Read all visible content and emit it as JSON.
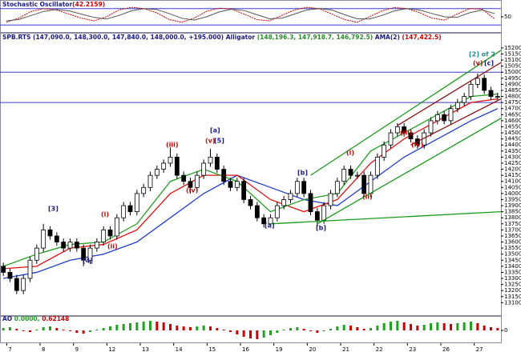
{
  "chart_data": [
    {
      "type": "line",
      "header": [
        {
          "text": "Stochastic Oscillator",
          "color": "#1a1a8a"
        },
        {
          "text": "(42.2159)",
          "color": "#cc0000"
        }
      ],
      "xlim": [
        -0.5,
        39.5
      ],
      "ylim": [
        0,
        100
      ],
      "yticks": [
        50
      ],
      "levels": [
        80,
        20
      ],
      "level_color": "#3b3bd6",
      "series": [
        {
          "color": "#cc0000",
          "values": [
            30,
            45,
            70,
            80,
            75,
            60,
            45,
            35,
            50,
            75,
            85,
            80,
            65,
            40,
            30,
            45,
            70,
            82,
            78,
            60,
            40,
            35,
            55,
            75,
            85,
            80,
            60,
            40,
            30,
            50,
            72,
            84,
            80,
            65,
            45,
            38,
            60,
            80,
            78,
            42
          ]
        },
        {
          "color": "#555555",
          "values": [
            35,
            40,
            55,
            70,
            77,
            72,
            60,
            48,
            42,
            55,
            72,
            80,
            77,
            62,
            45,
            38,
            50,
            68,
            78,
            73,
            58,
            43,
            45,
            60,
            75,
            80,
            75,
            58,
            43,
            42,
            55,
            72,
            80,
            75,
            62,
            50,
            48,
            65,
            75,
            62
          ]
        }
      ]
    },
    {
      "type": "candlestick",
      "header": [
        {
          "text": "SPB.RTS",
          "color": "#1a1a8a"
        },
        {
          "text": " (147,090.0, 148,300.0, 147,840.0, 148,000.0, +195.000)",
          "color": "#1a1a8a"
        },
        {
          "text": "  Alligator",
          "color": "#1a1a8a"
        },
        {
          "text": " (148,196.3, 147,918.7, 146,792.5)",
          "color": "#2a8a2a"
        },
        {
          "text": "  AMA(2)",
          "color": "#1a1a8a"
        },
        {
          "text": " (147,422.5)",
          "color": "#cc0000"
        }
      ],
      "xlim": [
        -0.5,
        74.5
      ],
      "ylim": [
        13010,
        15305
      ],
      "yticks": [
        13100,
        13150,
        13200,
        13250,
        13300,
        13350,
        13400,
        13450,
        13500,
        13550,
        13600,
        13650,
        13700,
        13750,
        13800,
        13850,
        13900,
        13950,
        14000,
        14050,
        14100,
        14150,
        14200,
        14250,
        14300,
        14350,
        14400,
        14450,
        14500,
        14550,
        14600,
        14650,
        14700,
        14750,
        14800,
        14850,
        14900,
        14950,
        15000,
        15050,
        15100,
        15150,
        15200
      ],
      "xticks": [
        {
          "value": 0.5,
          "label": "7"
        },
        {
          "value": 5.5,
          "label": "8"
        },
        {
          "value": 10.5,
          "label": "9"
        },
        {
          "value": 15.5,
          "label": "12"
        },
        {
          "value": 20.5,
          "label": "13"
        },
        {
          "value": 25.5,
          "label": "14"
        },
        {
          "value": 30.5,
          "label": "15"
        },
        {
          "value": 35.5,
          "label": "16"
        },
        {
          "value": 40.5,
          "label": "19"
        },
        {
          "value": 45.5,
          "label": "20"
        },
        {
          "value": 50.5,
          "label": "21"
        },
        {
          "value": 55.5,
          "label": "22"
        },
        {
          "value": 60.5,
          "label": "23"
        },
        {
          "value": 65.5,
          "label": "26"
        },
        {
          "value": 70.5,
          "label": "27"
        }
      ],
      "open": [
        13400,
        13350,
        13300,
        13200,
        13300,
        13450,
        13550,
        13700,
        13650,
        13600,
        13550,
        13600,
        13550,
        13450,
        13550,
        13600,
        13700,
        13650,
        13800,
        13900,
        13850,
        14000,
        14050,
        14150,
        14200,
        14250,
        14300,
        14150,
        14100,
        14050,
        14150,
        14250,
        14300,
        14200,
        14100,
        14050,
        14100,
        13950,
        13900,
        13800,
        13750,
        13800,
        13900,
        13950,
        14000,
        14100,
        14000,
        13850,
        13780,
        13900,
        14000,
        14100,
        14200,
        14150,
        14150,
        14000,
        14150,
        14300,
        14400,
        14500,
        14550,
        14500,
        14450,
        14400,
        14500,
        14600,
        14650,
        14600,
        14700,
        14750,
        14800,
        14900,
        14950,
        14850,
        14800
      ],
      "high": [
        13430,
        13380,
        13330,
        13330,
        13480,
        13580,
        13750,
        13730,
        13680,
        13630,
        13630,
        13630,
        13580,
        13580,
        13630,
        13730,
        13730,
        13830,
        13930,
        13930,
        14030,
        14080,
        14180,
        14230,
        14280,
        14380,
        14330,
        14180,
        14130,
        14180,
        14280,
        14370,
        14330,
        14230,
        14130,
        14130,
        14130,
        13980,
        13930,
        13830,
        13830,
        13930,
        13980,
        14030,
        14130,
        14130,
        14030,
        13880,
        13930,
        14030,
        14130,
        14230,
        14230,
        14180,
        14180,
        14180,
        14330,
        14430,
        14530,
        14580,
        14580,
        14530,
        14480,
        14530,
        14630,
        14680,
        14680,
        14730,
        14780,
        14830,
        14930,
        14990,
        14980,
        14880,
        14830
      ],
      "low": [
        13320,
        13270,
        13170,
        13170,
        13270,
        13420,
        13520,
        13620,
        13570,
        13520,
        13520,
        13520,
        13400,
        13420,
        13520,
        13570,
        13620,
        13620,
        13770,
        13820,
        13820,
        13970,
        14020,
        14120,
        14170,
        14220,
        14120,
        14070,
        14000,
        14020,
        14120,
        14220,
        14170,
        14070,
        14020,
        14020,
        13920,
        13870,
        13770,
        13720,
        13720,
        13770,
        13870,
        13920,
        13970,
        13970,
        13820,
        13730,
        13750,
        13870,
        13970,
        14070,
        14120,
        14120,
        13970,
        13970,
        14120,
        14270,
        14370,
        14470,
        14470,
        14420,
        14370,
        14370,
        14470,
        14570,
        14570,
        14570,
        14670,
        14720,
        14770,
        14870,
        14820,
        14770,
        14770
      ],
      "close": [
        13350,
        13300,
        13200,
        13300,
        13450,
        13550,
        13700,
        13650,
        13600,
        13550,
        13600,
        13550,
        13450,
        13550,
        13600,
        13700,
        13650,
        13800,
        13900,
        13850,
        14000,
        14050,
        14150,
        14200,
        14250,
        14300,
        14150,
        14100,
        14050,
        14150,
        14250,
        14300,
        14200,
        14100,
        14050,
        14100,
        13950,
        13900,
        13800,
        13750,
        13800,
        13900,
        13950,
        14000,
        14100,
        14000,
        13850,
        13780,
        13900,
        14000,
        14100,
        14200,
        14150,
        14150,
        14000,
        14150,
        14300,
        14400,
        14500,
        14550,
        14500,
        14450,
        14400,
        14500,
        14600,
        14650,
        14600,
        14700,
        14750,
        14800,
        14900,
        14950,
        14850,
        14800,
        14800
      ],
      "up_color": "#ffffff",
      "down_color": "#000000",
      "hlines": [
        15000,
        14750
      ],
      "hline_color": "#3b3bd6",
      "ma": [
        {
          "color": "#1f3fd0",
          "x": [
            0,
            5,
            10,
            15,
            20,
            25,
            30,
            35,
            40,
            45,
            50,
            55,
            60,
            65,
            70,
            74
          ],
          "values": [
            13300,
            13350,
            13450,
            13500,
            13600,
            13800,
            14000,
            14150,
            14050,
            13950,
            13900,
            14100,
            14300,
            14450,
            14600,
            14700
          ]
        },
        {
          "color": "#e01010",
          "x": [
            0,
            5,
            10,
            15,
            20,
            25,
            30,
            35,
            40,
            45,
            50,
            55,
            60,
            65,
            70,
            74
          ],
          "values": [
            13380,
            13400,
            13550,
            13580,
            13700,
            14000,
            14150,
            14150,
            13950,
            13850,
            13950,
            14250,
            14450,
            14600,
            14750,
            14780
          ]
        },
        {
          "color": "#22a022",
          "x": [
            0,
            5,
            10,
            15,
            20,
            25,
            30,
            35,
            40,
            45,
            50,
            55,
            60,
            65,
            70,
            74
          ],
          "values": [
            13400,
            13500,
            13580,
            13600,
            13750,
            14100,
            14200,
            14100,
            13850,
            13950,
            14000,
            14350,
            14500,
            14650,
            14800,
            14820
          ]
        }
      ],
      "trendlines": [
        {
          "color": "#1a9a1a",
          "x": [
            40,
            74.5
          ],
          "values": [
            13750,
            13850
          ]
        },
        {
          "color": "#1a9a1a",
          "x": [
            46,
            74.5
          ],
          "values": [
            14150,
            15180
          ]
        },
        {
          "color": "#1a9a1a",
          "x": [
            47,
            74.5
          ],
          "values": [
            13750,
            14620
          ]
        },
        {
          "color": "#8a1010",
          "x": [
            59,
            74.5
          ],
          "values": [
            14560,
            15080
          ]
        },
        {
          "color": "#8a1010",
          "x": [
            61,
            74.5
          ],
          "values": [
            14400,
            14780
          ]
        }
      ],
      "annotations": [
        {
          "text": "[2] of 2",
          "color": "#2a8a8a"
        },
        {
          "text": "(v)",
          "color": "#cc0000"
        },
        {
          "text": "[c]",
          "color": "#1a1a8a"
        },
        {
          "text": "[a]",
          "color": "#1a1a8a"
        },
        {
          "text": "(v)",
          "color": "#cc0000"
        },
        {
          "text": "[5]",
          "color": "#1a1a8a"
        },
        {
          "text": "(iii)",
          "color": "#cc0000"
        },
        {
          "text": "(iv)",
          "color": "#cc0000"
        },
        {
          "text": "[3]",
          "color": "#1a1a8a"
        },
        {
          "text": "(i)",
          "color": "#cc0000"
        },
        {
          "text": "(ii)",
          "color": "#cc0000"
        },
        {
          "text": "[4]",
          "color": "#1a1a8a"
        },
        {
          "text": "[b]",
          "color": "#1a1a8a"
        },
        {
          "text": "[a]",
          "color": "#1a1a8a"
        },
        {
          "text": "[b]",
          "color": "#1a1a8a"
        },
        {
          "text": "(i)",
          "color": "#cc0000"
        },
        {
          "text": "(ii)",
          "color": "#cc0000"
        },
        {
          "text": "(iii)",
          "color": "#cc0000"
        },
        {
          "text": "(iv)",
          "color": "#cc0000"
        }
      ]
    },
    {
      "type": "bar",
      "header": [
        {
          "text": "AO",
          "color": "#1a1a8a"
        },
        {
          "text": " 0.0000,",
          "color": "#22a022"
        },
        {
          "text": " 0.62148",
          "color": "#cc0000"
        }
      ],
      "xlim": [
        -0.5,
        74.5
      ],
      "ylim": [
        -1.3,
        1.3
      ],
      "yticks": [
        0
      ],
      "up_color": "#22a022",
      "down_color": "#cc0000",
      "values": [
        0.3,
        0.4,
        0.2,
        -0.1,
        -0.2,
        0.1,
        0.4,
        0.5,
        0.3,
        0.1,
        -0.1,
        -0.3,
        -0.4,
        -0.2,
        0.1,
        0.3,
        0.5,
        0.7,
        0.8,
        0.9,
        1.0,
        1.1,
        1.2,
        1.1,
        1.0,
        0.8,
        0.6,
        0.5,
        0.4,
        0.5,
        0.6,
        0.5,
        0.3,
        0.1,
        -0.2,
        -0.5,
        -0.8,
        -1.0,
        -1.1,
        -0.9,
        -0.6,
        -0.3,
        0.1,
        0.3,
        0.4,
        0.2,
        -0.1,
        -0.3,
        -0.1,
        0.2,
        0.5,
        0.7,
        0.6,
        0.4,
        0.2,
        0.3,
        0.6,
        0.9,
        1.1,
        1.2,
        1.0,
        0.8,
        0.6,
        0.7,
        0.9,
        1.0,
        0.9,
        0.8,
        0.9,
        1.0,
        1.1,
        0.9,
        0.6,
        0.4,
        0.3
      ]
    }
  ]
}
